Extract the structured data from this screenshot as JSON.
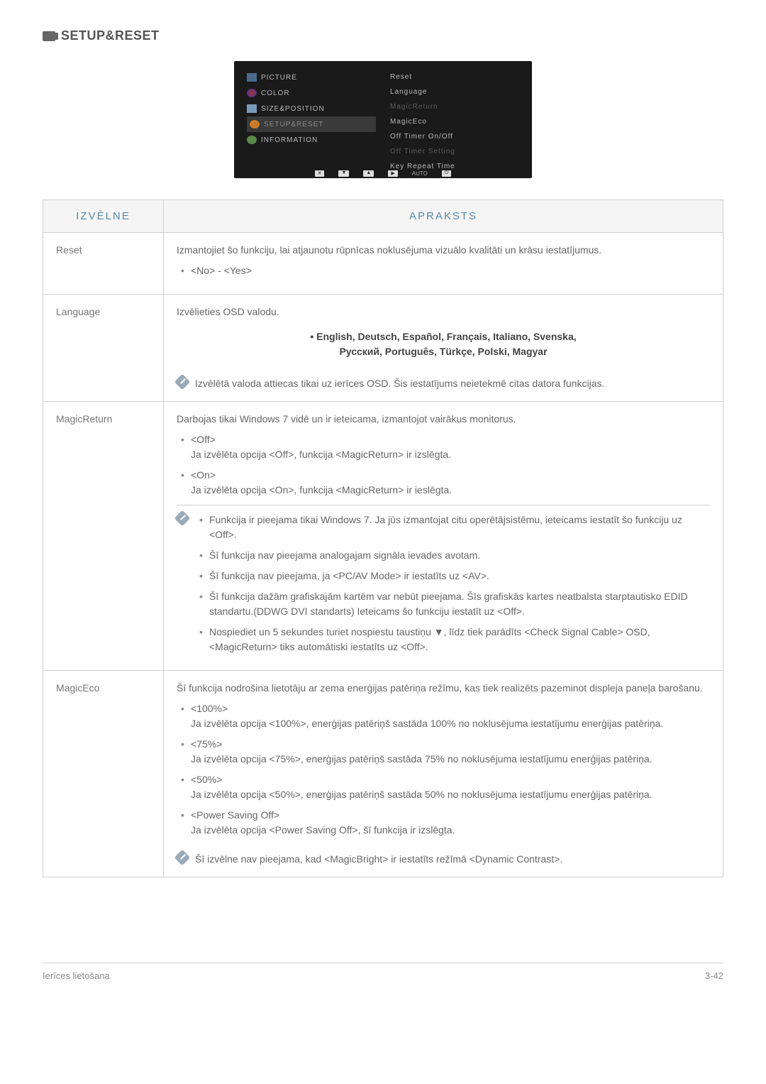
{
  "page_title": "SETUP&RESET",
  "osd": {
    "left_items": [
      {
        "label": "PICTURE",
        "icon": "picture"
      },
      {
        "label": "COLOR",
        "icon": "color"
      },
      {
        "label": "SIZE&POSITION",
        "icon": "size"
      },
      {
        "label": "SETUP&RESET",
        "icon": "setup",
        "selected": true
      },
      {
        "label": "INFORMATION",
        "icon": "info"
      }
    ],
    "right_items": [
      {
        "label": "Reset"
      },
      {
        "label": "Language"
      },
      {
        "label": "MagicReturn",
        "dim": true
      },
      {
        "label": "MagicEco"
      },
      {
        "label": "Off Timer On/Off"
      },
      {
        "label": "Off Timer Setting",
        "dim": true
      },
      {
        "label": "Key Repeat Time"
      }
    ],
    "bottom_auto": "AUTO"
  },
  "table": {
    "header_menu": "IZVĒLNE",
    "header_desc": "APRAKSTS",
    "rows": {
      "reset": {
        "menu": "Reset",
        "intro": "Izmantojiet šo funkciju, lai atjaunotu rūpnīcas noklusējuma vizuālo kvalitāti un krāsu iestatījumus.",
        "opt1": "<No> - <Yes>"
      },
      "language": {
        "menu": "Language",
        "intro": "Izvēlieties OSD valodu.",
        "langs1": "• English, Deutsch, Español, Français, Italiano, Svenska,",
        "langs2": "Русский, Português, Türkçe, Polski, Magyar",
        "note": "Izvēlētā valoda attiecas tikai uz ierīces OSD. Šis iestatījums neietekmē citas datora funkcijas."
      },
      "magicreturn": {
        "menu": "MagicReturn",
        "intro": "Darbojas tikai Windows 7 vidē un ir ieteicama, izmantojot vairākus monitorus.",
        "off_label": "<Off>",
        "off_desc": "Ja izvēlēta opcija <Off>, funkcija <MagicReturn> ir izslēgta.",
        "on_label": "<On>",
        "on_desc": "Ja izvēlēta opcija <On>, funkcija <MagicReturn> ir ieslēgta.",
        "n1": "Funkcija ir pieejama tikai Windows 7. Ja jūs izmantojat citu operētājsistēmu, ieteicams iestatīt šo funkciju uz <Off>.",
        "n2": "Šī funkcija nav pieejama analogajam signāla ievades avotam.",
        "n3": "Šī funkcija nav pieejama, ja <PC/AV Mode> ir iestatīts uz <AV>.",
        "n4": "Šī funkcija dažām grafiskajām kartēm var nebūt pieejama. Šīs grafiskās kartes neatbalsta starptautisko EDID standartu.(DDWG DVI standarts) Ieteicams šo funkciju iestatīt uz <Off>.",
        "n5": "Nospiediet un 5 sekundes turiet nospiestu taustiņu ▼, līdz tiek parādīts <Check Signal Cable> OSD,<MagicReturn> tiks automātiski iestatīts uz <Off>."
      },
      "magiceco": {
        "menu": "MagicEco",
        "intro": "Šī funkcija nodrošina lietotāju ar zema enerģijas patēriņa režīmu, kas tiek realizēts pazeminot displeja paneļa barošanu.",
        "p100_label": "<100%>",
        "p100_desc": "Ja izvēlēta opcija <100%>, enerģijas patēriņš sastāda 100% no noklusējuma iestatījumu enerģijas patēriņa.",
        "p75_label": "<75%>",
        "p75_desc": "Ja izvēlēta opcija <75%>, enerģijas patēriņš sastāda 75% no noklusējuma iestatījumu enerģijas patēriņa.",
        "p50_label": "<50%>",
        "p50_desc": "Ja izvēlēta opcija <50%>, enerģijas patēriņš sastāda 50% no noklusējuma iestatījumu enerģijas patēriņa.",
        "poff_label": "<Power Saving Off>",
        "poff_desc": "Ja izvēlēta opcija <Power Saving Off>, šī funkcija ir izslēgta.",
        "note": "Šī izvēlne nav pieejama, kad <MagicBright> ir iestatīts režīmā <Dynamic Contrast>."
      }
    }
  },
  "footer": {
    "left": "Ierīces lietošana",
    "right": "3-42"
  }
}
